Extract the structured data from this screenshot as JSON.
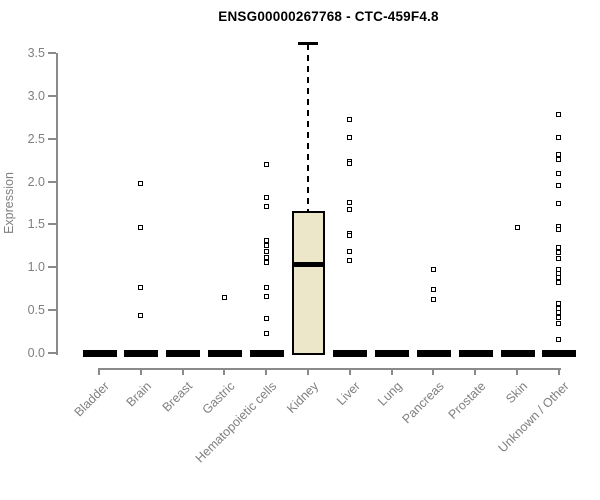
{
  "title": "ENSG00000267768 - CTC-459F4.8",
  "chart_data": {
    "type": "boxplot",
    "title": "ENSG00000267768 - CTC-459F4.8",
    "xlabel": "",
    "ylabel": "Expression",
    "ylim": [
      0.0,
      3.5
    ],
    "ytick_labels": [
      "0.0",
      "0.5",
      "1.0",
      "1.5",
      "2.0",
      "2.5",
      "3.0",
      "3.5"
    ],
    "grid": false,
    "legend": "none",
    "categories": [
      "Bladder",
      "Brain",
      "Breast",
      "Gastric",
      "Hematopoietic cells",
      "Kidney",
      "Liver",
      "Lung",
      "Pancreas",
      "Prostate",
      "Skin",
      "Unknown / Other"
    ],
    "boxes": [
      {
        "category": "Bladder",
        "q1": 0,
        "median": 0,
        "q3": 0,
        "whisker_low": 0,
        "whisker_high": 0,
        "outliers": []
      },
      {
        "category": "Brain",
        "q1": 0,
        "median": 0,
        "q3": 0,
        "whisker_low": 0,
        "whisker_high": 0,
        "outliers": [
          1.98,
          1.46,
          0.76,
          0.44
        ]
      },
      {
        "category": "Breast",
        "q1": 0,
        "median": 0,
        "q3": 0,
        "whisker_low": 0,
        "whisker_high": 0,
        "outliers": []
      },
      {
        "category": "Gastric",
        "q1": 0,
        "median": 0,
        "q3": 0,
        "whisker_low": 0,
        "whisker_high": 0,
        "outliers": [
          0.65
        ]
      },
      {
        "category": "Hematopoietic cells",
        "q1": 0,
        "median": 0,
        "q3": 0,
        "whisker_low": 0,
        "whisker_high": 0,
        "outliers": [
          2.2,
          1.82,
          1.71,
          1.31,
          1.25,
          1.19,
          1.12,
          1.06,
          0.77,
          0.66,
          0.4,
          0.23
        ]
      },
      {
        "category": "Kidney",
        "q1": 0.0,
        "median": 1.03,
        "q3": 1.66,
        "whisker_low": 0.0,
        "whisker_high": 3.61,
        "outliers": []
      },
      {
        "category": "Liver",
        "q1": 0,
        "median": 0,
        "q3": 0,
        "whisker_low": 0,
        "whisker_high": 0,
        "outliers": [
          2.72,
          2.52,
          2.24,
          2.21,
          1.76,
          1.67,
          1.4,
          1.37,
          1.18,
          1.08
        ]
      },
      {
        "category": "Lung",
        "q1": 0,
        "median": 0,
        "q3": 0,
        "whisker_low": 0,
        "whisker_high": 0,
        "outliers": []
      },
      {
        "category": "Pancreas",
        "q1": 0,
        "median": 0,
        "q3": 0,
        "whisker_low": 0,
        "whisker_high": 0,
        "outliers": [
          0.98,
          0.74,
          0.62
        ]
      },
      {
        "category": "Prostate",
        "q1": 0,
        "median": 0,
        "q3": 0,
        "whisker_low": 0,
        "whisker_high": 0,
        "outliers": []
      },
      {
        "category": "Skin",
        "q1": 0,
        "median": 0,
        "q3": 0,
        "whisker_low": 0,
        "whisker_high": 0,
        "outliers": [
          1.47
        ]
      },
      {
        "category": "Unknown / Other",
        "q1": 0,
        "median": 0,
        "q3": 0,
        "whisker_low": 0,
        "whisker_high": 0,
        "outliers": [
          2.78,
          2.51,
          2.32,
          2.26,
          2.09,
          1.96,
          1.74,
          1.48,
          1.44,
          1.23,
          1.17,
          1.1,
          0.98,
          0.93,
          0.88,
          0.82,
          0.58,
          0.52,
          0.47,
          0.42,
          0.35,
          0.16
        ]
      }
    ],
    "colors": {
      "box_fill": "#EDE7C9",
      "box_border": "#000000",
      "median": "#000000",
      "zero_bar": "#000000",
      "axis": "#8A8A8A",
      "tick_label": "#7F7F7F",
      "title": "#000000",
      "point_border": "#000000",
      "point_fill": "#FFFFFF",
      "background": "#FFFFFF"
    }
  }
}
